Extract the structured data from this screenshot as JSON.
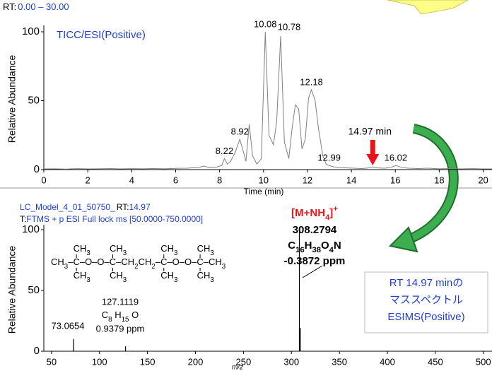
{
  "chart_data": [
    {
      "type": "line",
      "header_label": "RT:",
      "header_range": "0.00 – 30.00",
      "title": "TICC/ESI(Positive)",
      "xlabel": "Time (min)",
      "ylabel": "Relative Abundance",
      "color": "#808080",
      "x": [
        0,
        0.5,
        1,
        1.5,
        2,
        2.5,
        3,
        3.5,
        4,
        4.5,
        5,
        5.5,
        6,
        6.5,
        7,
        7.3,
        7.6,
        7.9,
        8.1,
        8.22,
        8.35,
        8.5,
        8.7,
        8.92,
        9.1,
        9.2,
        9.35,
        9.5,
        9.7,
        9.9,
        10.08,
        10.25,
        10.45,
        10.6,
        10.78,
        10.95,
        11.15,
        11.3,
        11.45,
        11.6,
        11.75,
        11.9,
        12.05,
        12.18,
        12.35,
        12.5,
        12.7,
        12.85,
        12.99,
        13.2,
        13.5,
        13.8,
        14.1,
        14.4,
        14.7,
        14.97,
        15.2,
        15.5,
        15.8,
        16.02,
        16.3,
        16.6,
        17,
        17.5,
        18,
        18.5,
        19,
        19.5,
        20,
        20.4
      ],
      "values": [
        0.5,
        0.6,
        0.4,
        0.7,
        0.5,
        0.6,
        0.8,
        0.5,
        0.7,
        0.6,
        0.8,
        0.6,
        0.9,
        1,
        1.5,
        2.5,
        1.2,
        2,
        3,
        8,
        4,
        6,
        12,
        22,
        12,
        6,
        33,
        10,
        4,
        8,
        100,
        25,
        18,
        35,
        97,
        20,
        8,
        30,
        47,
        44,
        15,
        22,
        52,
        58,
        50,
        30,
        10,
        4,
        3,
        2,
        1.5,
        1.2,
        1,
        0.8,
        1,
        2,
        1.2,
        1,
        1.5,
        3,
        1.5,
        1,
        0.8,
        1,
        0.6,
        0.8,
        0.5,
        0.7,
        0.5,
        0.5
      ],
      "xlim": [
        0,
        20.4
      ],
      "ylim": [
        0,
        100
      ],
      "xticks": [
        0,
        2,
        4,
        6,
        8,
        10,
        12,
        14,
        16,
        18,
        20
      ],
      "yticks": [
        0,
        50,
        100
      ],
      "peak_labels": [
        8.22,
        8.92,
        10.08,
        10.78,
        12.18,
        12.99,
        16.02
      ],
      "marker": {
        "x": 14.97,
        "label": "14.97 min",
        "color": "#e8141a"
      }
    },
    {
      "type": "stem",
      "header_name": "LC_Model_4_01_50750_",
      "header_rt_label": "RT:",
      "header_rt": "14.97",
      "scan_label": "T:",
      "scan": "FTMS + p ESI Full lock ms [50.0000-750.0000]",
      "xlabel": "m/z",
      "ylabel": "Relative Abundance",
      "color": "#000000",
      "x": [
        73.0654,
        127.1119,
        308.2794,
        309.2828
      ],
      "values": [
        10,
        4,
        100,
        19
      ],
      "xlim": [
        42,
        509
      ],
      "ylim": [
        0,
        100
      ],
      "xticks": [
        50,
        100,
        150,
        200,
        250,
        300,
        350,
        400,
        450,
        500
      ],
      "yticks": [
        0,
        50,
        100
      ]
    }
  ],
  "molecule": {
    "adduct": "[M+NH4]+",
    "formula": "C16H38O4N",
    "ppm": "-0.3872 ppm",
    "structure": {
      "top": [
        "CH3",
        "CH3",
        "CH3",
        "CH3"
      ],
      "main": [
        "CH3–",
        "C",
        "–O–O–",
        "C",
        "–CH2CH2–",
        "C",
        "–O–O–",
        "C",
        "–CH3"
      ],
      "bottom": [
        "CH3",
        "CH3",
        "CH3",
        "CH3"
      ]
    }
  },
  "fragment": {
    "formula": "C8 H15 O",
    "ppm": "0.9379 ppm"
  },
  "note": [
    "RT 14.97 minの",
    "マススペクトル",
    "ESIMS(Positive)"
  ]
}
